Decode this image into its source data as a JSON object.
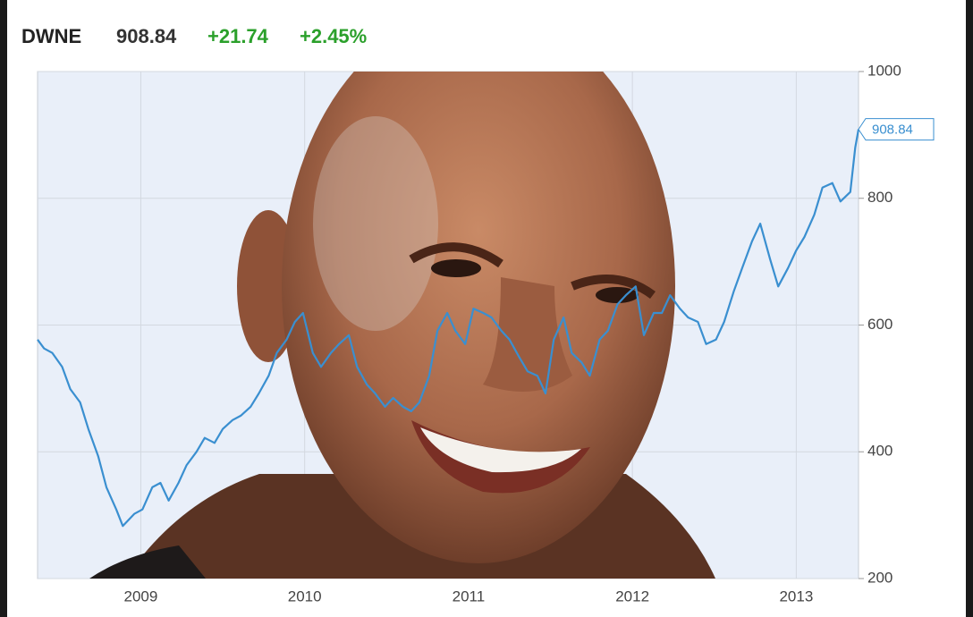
{
  "chart_data": {
    "type": "line",
    "title": "DWNE",
    "price": "908.84",
    "change": "+21.74",
    "change_percent": "+2.45%",
    "color": "#3a8fd0",
    "grid": true,
    "xlim": [
      2008.37,
      2013.38
    ],
    "xticks": [
      2009,
      2010,
      2011,
      2012,
      2013
    ],
    "ylim": [
      200,
      1000
    ],
    "yticks": [
      200,
      400,
      600,
      800,
      1000
    ],
    "x": [
      2008.37,
      2008.41,
      2008.46,
      2008.52,
      2008.57,
      2008.63,
      2008.68,
      2008.74,
      2008.79,
      2008.85,
      2008.89,
      2008.96,
      2009.01,
      2009.07,
      2009.12,
      2009.17,
      2009.23,
      2009.28,
      2009.34,
      2009.39,
      2009.45,
      2009.5,
      2009.56,
      2009.61,
      2009.67,
      2009.72,
      2009.78,
      2009.83,
      2009.89,
      2009.94,
      2009.99,
      2010.05,
      2010.1,
      2010.16,
      2010.21,
      2010.27,
      2010.32,
      2010.38,
      2010.43,
      2010.49,
      2010.54,
      2010.6,
      2010.65,
      2010.7,
      2010.76,
      2010.81,
      2010.87,
      2010.92,
      2010.98,
      2011.03,
      2011.09,
      2011.14,
      2011.2,
      2011.25,
      2011.31,
      2011.36,
      2011.42,
      2011.47,
      2011.52,
      2011.58,
      2011.63,
      2011.69,
      2011.74,
      2011.8,
      2011.85,
      2011.91,
      2011.96,
      2012.02,
      2012.07,
      2012.13,
      2012.18,
      2012.23,
      2012.29,
      2012.34,
      2012.4,
      2012.45,
      2012.51,
      2012.56,
      2012.62,
      2012.67,
      2012.73,
      2012.78,
      2012.84,
      2012.89,
      2012.95,
      2013.0,
      2013.05,
      2013.11,
      2013.16,
      2013.22,
      2013.27,
      2013.33,
      2013.36,
      2013.38
    ],
    "values": [
      577,
      563,
      556,
      534,
      499,
      478,
      436,
      393,
      344,
      309,
      283,
      302,
      309,
      344,
      351,
      323,
      351,
      379,
      400,
      422,
      414,
      436,
      450,
      457,
      471,
      492,
      520,
      556,
      577,
      605,
      619,
      556,
      534,
      556,
      570,
      584,
      534,
      506,
      492,
      471,
      485,
      471,
      464,
      478,
      520,
      591,
      619,
      591,
      570,
      626,
      619,
      612,
      591,
      577,
      549,
      527,
      520,
      492,
      577,
      612,
      556,
      541,
      520,
      577,
      591,
      633,
      647,
      661,
      584,
      619,
      619,
      647,
      626,
      612,
      605,
      570,
      577,
      605,
      654,
      690,
      732,
      760,
      704,
      661,
      690,
      718,
      739,
      774,
      817,
      824,
      795,
      810,
      880,
      908.84
    ]
  }
}
